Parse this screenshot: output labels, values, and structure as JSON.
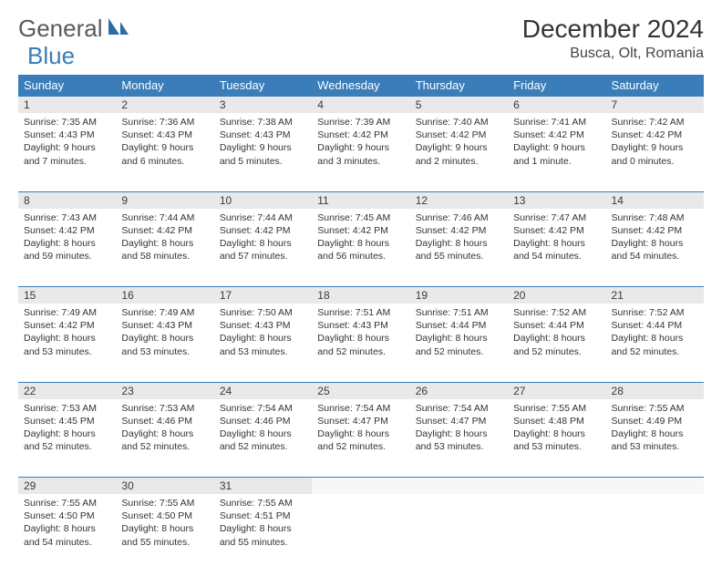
{
  "brand": {
    "word1": "General",
    "word2": "Blue"
  },
  "title": "December 2024",
  "location": "Busca, Olt, Romania",
  "colors": {
    "header_bg": "#3a7db8",
    "header_text": "#ffffff",
    "daynum_bg": "#e9e9e9",
    "border": "#3a7db8",
    "text": "#333333",
    "logo_gray": "#5a5a5a",
    "logo_blue": "#3a7db8"
  },
  "weekdays": [
    "Sunday",
    "Monday",
    "Tuesday",
    "Wednesday",
    "Thursday",
    "Friday",
    "Saturday"
  ],
  "weeks": [
    [
      {
        "n": "1",
        "sunrise": "Sunrise: 7:35 AM",
        "sunset": "Sunset: 4:43 PM",
        "daylight": "Daylight: 9 hours and 7 minutes."
      },
      {
        "n": "2",
        "sunrise": "Sunrise: 7:36 AM",
        "sunset": "Sunset: 4:43 PM",
        "daylight": "Daylight: 9 hours and 6 minutes."
      },
      {
        "n": "3",
        "sunrise": "Sunrise: 7:38 AM",
        "sunset": "Sunset: 4:43 PM",
        "daylight": "Daylight: 9 hours and 5 minutes."
      },
      {
        "n": "4",
        "sunrise": "Sunrise: 7:39 AM",
        "sunset": "Sunset: 4:42 PM",
        "daylight": "Daylight: 9 hours and 3 minutes."
      },
      {
        "n": "5",
        "sunrise": "Sunrise: 7:40 AM",
        "sunset": "Sunset: 4:42 PM",
        "daylight": "Daylight: 9 hours and 2 minutes."
      },
      {
        "n": "6",
        "sunrise": "Sunrise: 7:41 AM",
        "sunset": "Sunset: 4:42 PM",
        "daylight": "Daylight: 9 hours and 1 minute."
      },
      {
        "n": "7",
        "sunrise": "Sunrise: 7:42 AM",
        "sunset": "Sunset: 4:42 PM",
        "daylight": "Daylight: 9 hours and 0 minutes."
      }
    ],
    [
      {
        "n": "8",
        "sunrise": "Sunrise: 7:43 AM",
        "sunset": "Sunset: 4:42 PM",
        "daylight": "Daylight: 8 hours and 59 minutes."
      },
      {
        "n": "9",
        "sunrise": "Sunrise: 7:44 AM",
        "sunset": "Sunset: 4:42 PM",
        "daylight": "Daylight: 8 hours and 58 minutes."
      },
      {
        "n": "10",
        "sunrise": "Sunrise: 7:44 AM",
        "sunset": "Sunset: 4:42 PM",
        "daylight": "Daylight: 8 hours and 57 minutes."
      },
      {
        "n": "11",
        "sunrise": "Sunrise: 7:45 AM",
        "sunset": "Sunset: 4:42 PM",
        "daylight": "Daylight: 8 hours and 56 minutes."
      },
      {
        "n": "12",
        "sunrise": "Sunrise: 7:46 AM",
        "sunset": "Sunset: 4:42 PM",
        "daylight": "Daylight: 8 hours and 55 minutes."
      },
      {
        "n": "13",
        "sunrise": "Sunrise: 7:47 AM",
        "sunset": "Sunset: 4:42 PM",
        "daylight": "Daylight: 8 hours and 54 minutes."
      },
      {
        "n": "14",
        "sunrise": "Sunrise: 7:48 AM",
        "sunset": "Sunset: 4:42 PM",
        "daylight": "Daylight: 8 hours and 54 minutes."
      }
    ],
    [
      {
        "n": "15",
        "sunrise": "Sunrise: 7:49 AM",
        "sunset": "Sunset: 4:42 PM",
        "daylight": "Daylight: 8 hours and 53 minutes."
      },
      {
        "n": "16",
        "sunrise": "Sunrise: 7:49 AM",
        "sunset": "Sunset: 4:43 PM",
        "daylight": "Daylight: 8 hours and 53 minutes."
      },
      {
        "n": "17",
        "sunrise": "Sunrise: 7:50 AM",
        "sunset": "Sunset: 4:43 PM",
        "daylight": "Daylight: 8 hours and 53 minutes."
      },
      {
        "n": "18",
        "sunrise": "Sunrise: 7:51 AM",
        "sunset": "Sunset: 4:43 PM",
        "daylight": "Daylight: 8 hours and 52 minutes."
      },
      {
        "n": "19",
        "sunrise": "Sunrise: 7:51 AM",
        "sunset": "Sunset: 4:44 PM",
        "daylight": "Daylight: 8 hours and 52 minutes."
      },
      {
        "n": "20",
        "sunrise": "Sunrise: 7:52 AM",
        "sunset": "Sunset: 4:44 PM",
        "daylight": "Daylight: 8 hours and 52 minutes."
      },
      {
        "n": "21",
        "sunrise": "Sunrise: 7:52 AM",
        "sunset": "Sunset: 4:44 PM",
        "daylight": "Daylight: 8 hours and 52 minutes."
      }
    ],
    [
      {
        "n": "22",
        "sunrise": "Sunrise: 7:53 AM",
        "sunset": "Sunset: 4:45 PM",
        "daylight": "Daylight: 8 hours and 52 minutes."
      },
      {
        "n": "23",
        "sunrise": "Sunrise: 7:53 AM",
        "sunset": "Sunset: 4:46 PM",
        "daylight": "Daylight: 8 hours and 52 minutes."
      },
      {
        "n": "24",
        "sunrise": "Sunrise: 7:54 AM",
        "sunset": "Sunset: 4:46 PM",
        "daylight": "Daylight: 8 hours and 52 minutes."
      },
      {
        "n": "25",
        "sunrise": "Sunrise: 7:54 AM",
        "sunset": "Sunset: 4:47 PM",
        "daylight": "Daylight: 8 hours and 52 minutes."
      },
      {
        "n": "26",
        "sunrise": "Sunrise: 7:54 AM",
        "sunset": "Sunset: 4:47 PM",
        "daylight": "Daylight: 8 hours and 53 minutes."
      },
      {
        "n": "27",
        "sunrise": "Sunrise: 7:55 AM",
        "sunset": "Sunset: 4:48 PM",
        "daylight": "Daylight: 8 hours and 53 minutes."
      },
      {
        "n": "28",
        "sunrise": "Sunrise: 7:55 AM",
        "sunset": "Sunset: 4:49 PM",
        "daylight": "Daylight: 8 hours and 53 minutes."
      }
    ],
    [
      {
        "n": "29",
        "sunrise": "Sunrise: 7:55 AM",
        "sunset": "Sunset: 4:50 PM",
        "daylight": "Daylight: 8 hours and 54 minutes."
      },
      {
        "n": "30",
        "sunrise": "Sunrise: 7:55 AM",
        "sunset": "Sunset: 4:50 PM",
        "daylight": "Daylight: 8 hours and 55 minutes."
      },
      {
        "n": "31",
        "sunrise": "Sunrise: 7:55 AM",
        "sunset": "Sunset: 4:51 PM",
        "daylight": "Daylight: 8 hours and 55 minutes."
      },
      null,
      null,
      null,
      null
    ]
  ]
}
